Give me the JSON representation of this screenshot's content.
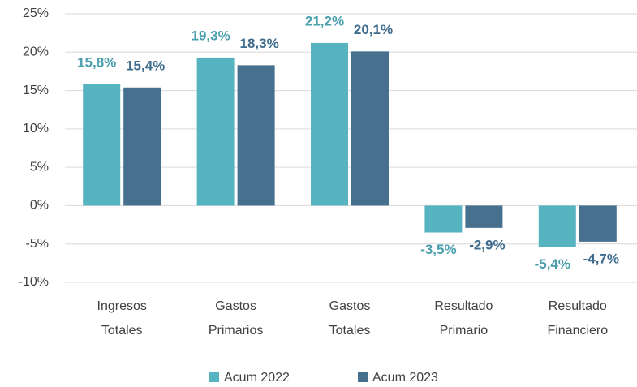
{
  "chart_data": {
    "type": "bar",
    "categories": [
      "Ingresos Totales",
      "Gastos Primarios",
      "Gastos Totales",
      "Resultado Primario",
      "Resultado Financiero"
    ],
    "series": [
      {
        "name": "Acum 2022",
        "color": "#56b4c0",
        "values": [
          15.8,
          19.3,
          21.2,
          -3.5,
          -5.4
        ],
        "value_labels": [
          "15,8%",
          "19,3%",
          "21,2%",
          "-3,5%",
          "-5,4%"
        ]
      },
      {
        "name": "Acum 2023",
        "color": "#476f8e",
        "values": [
          15.4,
          18.3,
          20.1,
          -2.9,
          -4.7
        ],
        "value_labels": [
          "15,4%",
          "18,3%",
          "20,1%",
          "-2,9%",
          "-4,7%"
        ]
      }
    ],
    "ylim": [
      -10,
      25
    ],
    "yticks": [
      {
        "value": -10,
        "label": "-10%"
      },
      {
        "value": -5,
        "label": "-5%"
      },
      {
        "value": 0,
        "label": "0%"
      },
      {
        "value": 5,
        "label": "5%"
      },
      {
        "value": 10,
        "label": "10%"
      },
      {
        "value": 15,
        "label": "15%"
      },
      {
        "value": 20,
        "label": "20%"
      },
      {
        "value": 25,
        "label": "25%"
      }
    ],
    "grid": true,
    "legend": "bottom"
  }
}
